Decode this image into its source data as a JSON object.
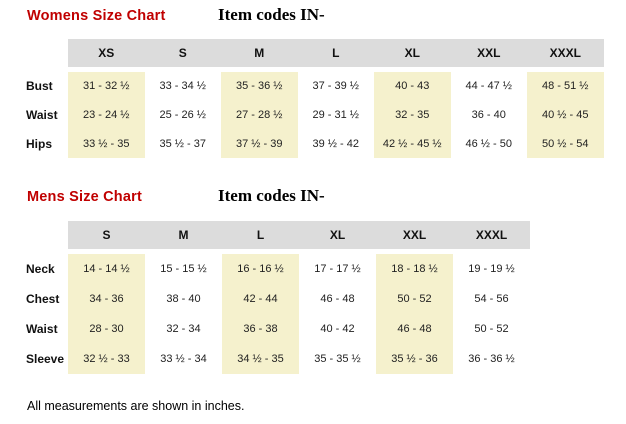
{
  "colors": {
    "title_red": "#c00000",
    "header_gray": "#dcdcdc",
    "stripe_cream": "#f5f1cd"
  },
  "womens": {
    "title": "Womens Size Chart",
    "item_codes_label": "Item codes IN-",
    "columns": [
      "XS",
      "S",
      "M",
      "L",
      "XL",
      "XXL",
      "XXXL"
    ],
    "rows": [
      {
        "label": "Bust",
        "values": [
          "31 - 32 ½",
          "33 - 34 ½",
          "35 - 36 ½",
          "37 - 39 ½",
          "40 - 43",
          "44 - 47 ½",
          "48 - 51 ½"
        ]
      },
      {
        "label": "Waist",
        "values": [
          "23 - 24 ½",
          "25 - 26 ½",
          "27 - 28 ½",
          "29 - 31 ½",
          "32 - 35",
          "36 - 40",
          "40 ½ - 45"
        ]
      },
      {
        "label": "Hips",
        "values": [
          "33 ½ - 35",
          "35 ½ - 37",
          "37 ½ - 39",
          "39 ½ - 42",
          "42 ½ - 45 ½",
          "46 ½ - 50",
          "50 ½ - 54"
        ]
      }
    ]
  },
  "mens": {
    "title": "Mens Size Chart",
    "item_codes_label": "Item codes IN-",
    "columns": [
      "S",
      "M",
      "L",
      "XL",
      "XXL",
      "XXXL"
    ],
    "rows": [
      {
        "label": "Neck",
        "values": [
          "14 - 14 ½",
          "15 - 15 ½",
          "16 - 16 ½",
          "17 - 17 ½",
          "18 - 18 ½",
          "19 - 19 ½"
        ]
      },
      {
        "label": "Chest",
        "values": [
          "34 - 36",
          "38 - 40",
          "42 - 44",
          "46 - 48",
          "50 - 52",
          "54 - 56"
        ]
      },
      {
        "label": "Waist",
        "values": [
          "28 - 30",
          "32 - 34",
          "36 - 38",
          "40 - 42",
          "46 - 48",
          "50 - 52"
        ]
      },
      {
        "label": "Sleeve",
        "values": [
          "32 ½ - 33",
          "33 ½ - 34",
          "34 ½ - 35",
          "35 - 35 ½",
          "35 ½ - 36",
          "36 - 36 ½"
        ]
      }
    ]
  },
  "footer": {
    "note": "All measurements are shown in inches."
  }
}
